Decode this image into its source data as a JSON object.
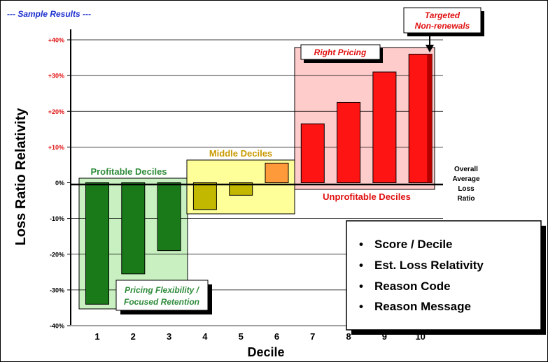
{
  "header": {
    "sample_label": "--- Sample Results ---"
  },
  "chart_data": {
    "type": "bar",
    "xlabel": "Decile",
    "ylabel": "Loss Ratio Relativity",
    "categories": [
      "1",
      "2",
      "3",
      "4",
      "5",
      "6",
      "7",
      "8",
      "9",
      "10"
    ],
    "values": [
      -34,
      -25.5,
      -19,
      -7.5,
      -3.5,
      5.5,
      16.5,
      22.5,
      31,
      36
    ],
    "ylim": [
      -40,
      40
    ],
    "ytick_labels": [
      "+40%",
      "+30%",
      "+20%",
      "+10%",
      "0%",
      "-10%",
      "-20%",
      "-30%",
      "-40%"
    ],
    "ytick_values": [
      40,
      30,
      20,
      10,
      0,
      -10,
      -20,
      -30,
      -40
    ],
    "grid": true,
    "bar_colors": [
      "#1a7a1a",
      "#1a7a1a",
      "#1a7a1a",
      "#c2b800",
      "#c2b800",
      "#ff9a3a",
      "#ff1414",
      "#ff1414",
      "#ff1414",
      "#ff1414"
    ],
    "groups": [
      {
        "label": "Profitable Deciles",
        "color": "#2e8b3a",
        "fill": "#c8f0c0"
      },
      {
        "label": "Middle Deciles",
        "color": "#c99a00",
        "fill": "#ffff99"
      },
      {
        "label": "Unprofitable Deciles",
        "color": "#e01010",
        "fill": "#ffcccc"
      }
    ],
    "annotations": {
      "right_pricing": "Right Pricing",
      "targeted_line1": "Targeted",
      "targeted_line2": "Non-renewals",
      "pricing_line1": "Pricing Flexibility /",
      "pricing_line2": "Focused Retention",
      "overall_line1": "Overall",
      "overall_line2": "Average",
      "overall_line3": "Loss",
      "overall_line4": "Ratio"
    }
  },
  "info_box": {
    "items": [
      "Score / Decile",
      "Est. Loss Relativity",
      "Reason Code",
      "Reason Message"
    ]
  }
}
